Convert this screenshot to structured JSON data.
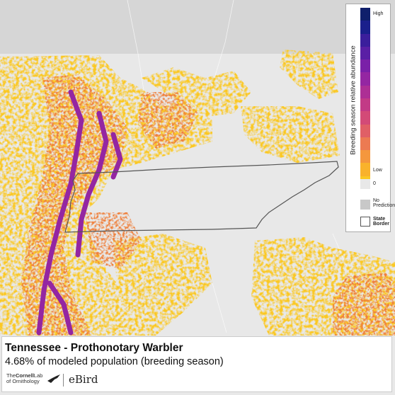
{
  "map": {
    "state": "Tennessee",
    "species": "Prothonotary Warbler",
    "season": "breeding season",
    "title": "Tennessee - Prothonotary Warbler",
    "subtitle": "4.68% of modeled population (breeding season)",
    "percent_of_population": 4.68
  },
  "legend": {
    "title": "Breeding season relative abundance",
    "high_label": "High",
    "low_label": "Low",
    "zero_label": "0",
    "no_prediction_label": "No\nPrediction",
    "state_border_label": "State\nBorder",
    "ramp_colors": [
      "#0f1f6b",
      "#1a1f8c",
      "#3b1e9c",
      "#5a1fa5",
      "#7a20a8",
      "#9426a2",
      "#ad2f95",
      "#c23a86",
      "#d34a77",
      "#e05f66",
      "#ec7a52",
      "#f4973d",
      "#f9b22b",
      "#fbc823"
    ],
    "zero_color": "#e8e8e8",
    "no_prediction_color": "#c8c8c8"
  },
  "colors": {
    "background": "#e8e8e8",
    "no_data_top": "#d6d6d6",
    "state_border": "#555555",
    "abundance_low": "#fbc823",
    "abundance_mid": "#ef7f3a",
    "abundance_high": "#9426a2"
  },
  "logos": {
    "cornell_line1_a": "The",
    "cornell_line1_b": "Cornell",
    "cornell_line1_c": "Lab",
    "cornell_line2": "of Ornithology",
    "ebird": "eBird"
  }
}
